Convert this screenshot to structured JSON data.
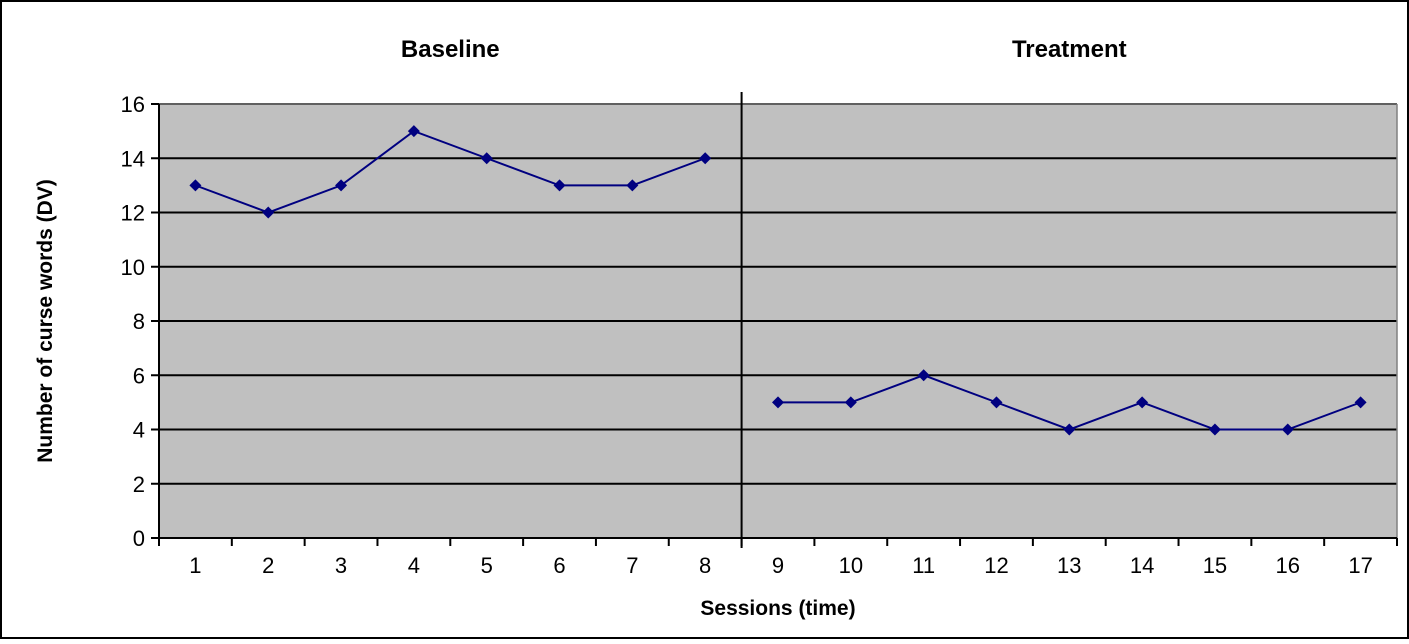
{
  "chart_data": {
    "type": "line",
    "phases": [
      {
        "label": "Baseline",
        "start": 1,
        "end": 8
      },
      {
        "label": "Treatment",
        "start": 9,
        "end": 17
      }
    ],
    "categories": [
      "1",
      "2",
      "3",
      "4",
      "5",
      "6",
      "7",
      "8",
      "9",
      "10",
      "11",
      "12",
      "13",
      "14",
      "15",
      "16",
      "17"
    ],
    "series": [
      {
        "segments": [
          {
            "x": [
              1,
              2,
              3,
              4,
              5,
              6,
              7,
              8
            ],
            "y": [
              13,
              12,
              13,
              15,
              14,
              13,
              13,
              14
            ]
          },
          {
            "x": [
              9,
              10,
              11,
              12,
              13,
              14,
              15,
              16,
              17
            ],
            "y": [
              5,
              5,
              6,
              5,
              4,
              5,
              4,
              4,
              5
            ]
          }
        ]
      }
    ],
    "phase_change_after": 8,
    "xlabel": "Sessions (time)",
    "ylabel": "Number of curse words (DV)",
    "ylim": [
      0,
      16
    ],
    "yticks": [
      0,
      2,
      4,
      6,
      8,
      10,
      12,
      14,
      16
    ],
    "grid": "horizontal",
    "legend": "none",
    "colors": {
      "line": "#000080",
      "marker": "#000080",
      "plot_background": "#c0c0c0",
      "gridline": "#000000",
      "border": "#000000"
    }
  }
}
